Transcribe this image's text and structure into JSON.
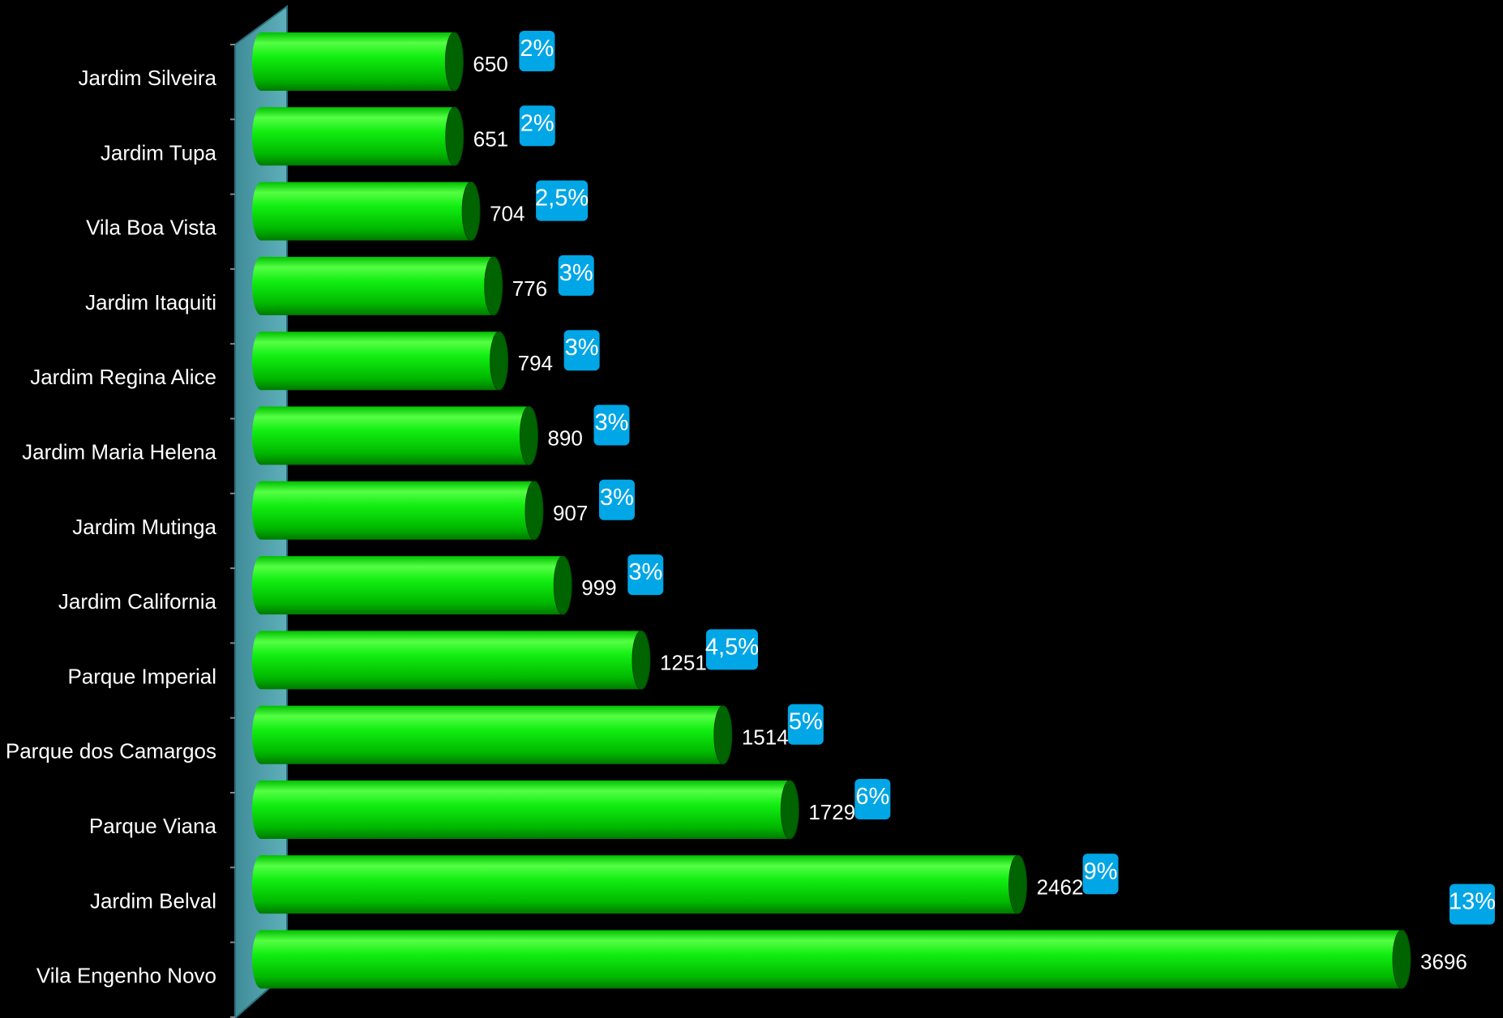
{
  "chart_data": {
    "type": "bar",
    "orientation": "horizontal",
    "style": "3d-cylinder",
    "title": "",
    "xlabel": "",
    "ylabel": "",
    "categories": [
      "Jardim Silveira",
      "Jardim Tupa",
      "Vila Boa Vista",
      "Jardim Itaquiti",
      "Jardim Regina Alice",
      "Jardim Maria Helena",
      "Jardim Mutinga",
      "Jardim California",
      "Parque Imperial",
      "Parque dos Camargos",
      "Parque Viana",
      "Jardim Belval",
      "Vila Engenho Novo"
    ],
    "values": [
      650,
      651,
      704,
      776,
      794,
      890,
      907,
      999,
      1251,
      1514,
      1729,
      2462,
      3696
    ],
    "value_labels": [
      "650",
      "651",
      "704",
      "776",
      "794",
      "890",
      "907",
      "999",
      "1251",
      "1514",
      "1729",
      "2462",
      "3696"
    ],
    "percent_labels": [
      "2%",
      "2%",
      "2,5%",
      "3%",
      "3%",
      "3%",
      "3%",
      "3%",
      "4,5%",
      "5%",
      "6%",
      "9%",
      "13%"
    ],
    "xlim": [
      0,
      3750
    ],
    "grid": false,
    "legend": "none",
    "colors": {
      "bar": "#00e000",
      "bar_dark": "#006400",
      "bar_light": "#66ff55",
      "badge": "#00a6e6",
      "wall": "#4a9aa6",
      "background": "#000000",
      "text": "#ffffff"
    }
  }
}
